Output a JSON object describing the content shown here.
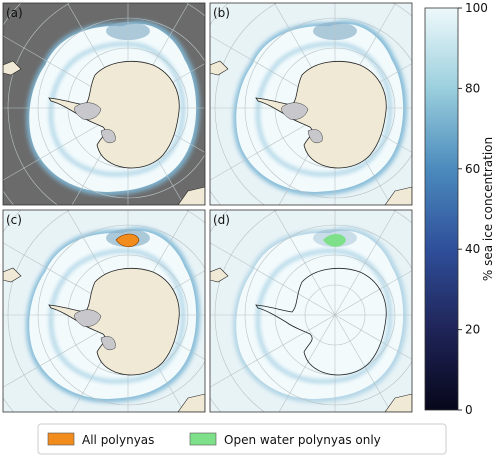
{
  "panels": [
    {
      "label": "(a)",
      "background": "#6b6b6b"
    },
    {
      "label": "(b)",
      "background": "#e8f3f6"
    },
    {
      "label": "(c)",
      "background": "#e8f3f6"
    },
    {
      "label": "(d)",
      "background": "#e8f3f6"
    }
  ],
  "colorbar": {
    "label": "% sea ice concentration",
    "lim": [
      0,
      100
    ],
    "ticks": [
      0,
      20,
      40,
      60,
      80,
      100
    ]
  },
  "legend": [
    {
      "name": "All polynyas",
      "color": "#f28c1c"
    },
    {
      "name": "Open water polynyas only",
      "color": "#7fe08a"
    }
  ]
}
